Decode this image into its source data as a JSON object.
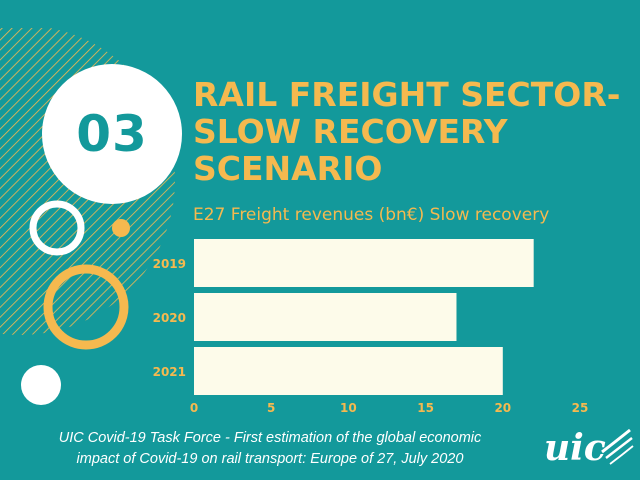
{
  "slide": {
    "number": "03",
    "title_lines": [
      "RAIL FREIGHT SECTOR-",
      "SLOW RECOVERY",
      "SCENARIO"
    ],
    "footer_lines": [
      "UIC Covid-19 Task Force - First estimation of the global economic",
      "impact of Covid-19 on rail transport: Europe of 27, July 2020"
    ],
    "logo_text": "uic"
  },
  "colors": {
    "background": "#13999b",
    "accent": "#f5b94f",
    "bar_fill": "#fdfbea",
    "white": "#ffffff"
  },
  "chart_data": {
    "type": "bar",
    "orientation": "horizontal",
    "title": "E27 Freight revenues (bn€) Slow recovery",
    "categories": [
      "2019",
      "2020",
      "2021"
    ],
    "values": [
      22,
      17,
      20
    ],
    "xlim": [
      0,
      25
    ],
    "xticks": [
      0,
      5,
      10,
      15,
      20,
      25
    ],
    "grid": false,
    "legend": "none"
  }
}
